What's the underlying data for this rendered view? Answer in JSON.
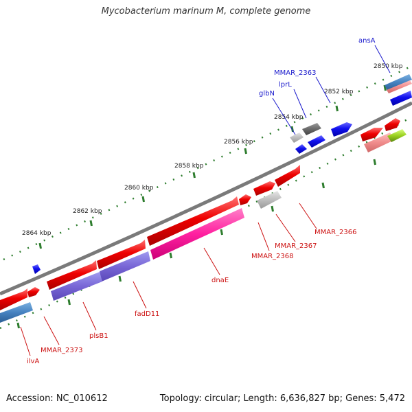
{
  "title": "Mycobacterium marinum M, complete genome",
  "footer": {
    "accession": "Accession: NC_010612",
    "summary": "Topology: circular; Length: 6,636,827 bp; Genes: 5,472"
  },
  "axis_labels": [
    "2850 kbp",
    "2852 kbp",
    "2854 kbp",
    "2856 kbp",
    "2858 kbp",
    "2860 kbp",
    "2862 kbp",
    "2864 kbp"
  ],
  "gene_labels": {
    "forward": [
      "ansA",
      "MMAR_2363",
      "lprL",
      "glbN"
    ],
    "reverse": [
      "MMAR_2366",
      "MMAR_2367",
      "MMAR_2368",
      "dnaE",
      "fadD11",
      "plsB1",
      "MMAR_2373",
      "ilvA"
    ]
  },
  "colors": {
    "forward_label": "#1a1acc",
    "reverse_label": "#cc1111",
    "backbone": "#777777",
    "ticks": "#2e7d2e"
  }
}
